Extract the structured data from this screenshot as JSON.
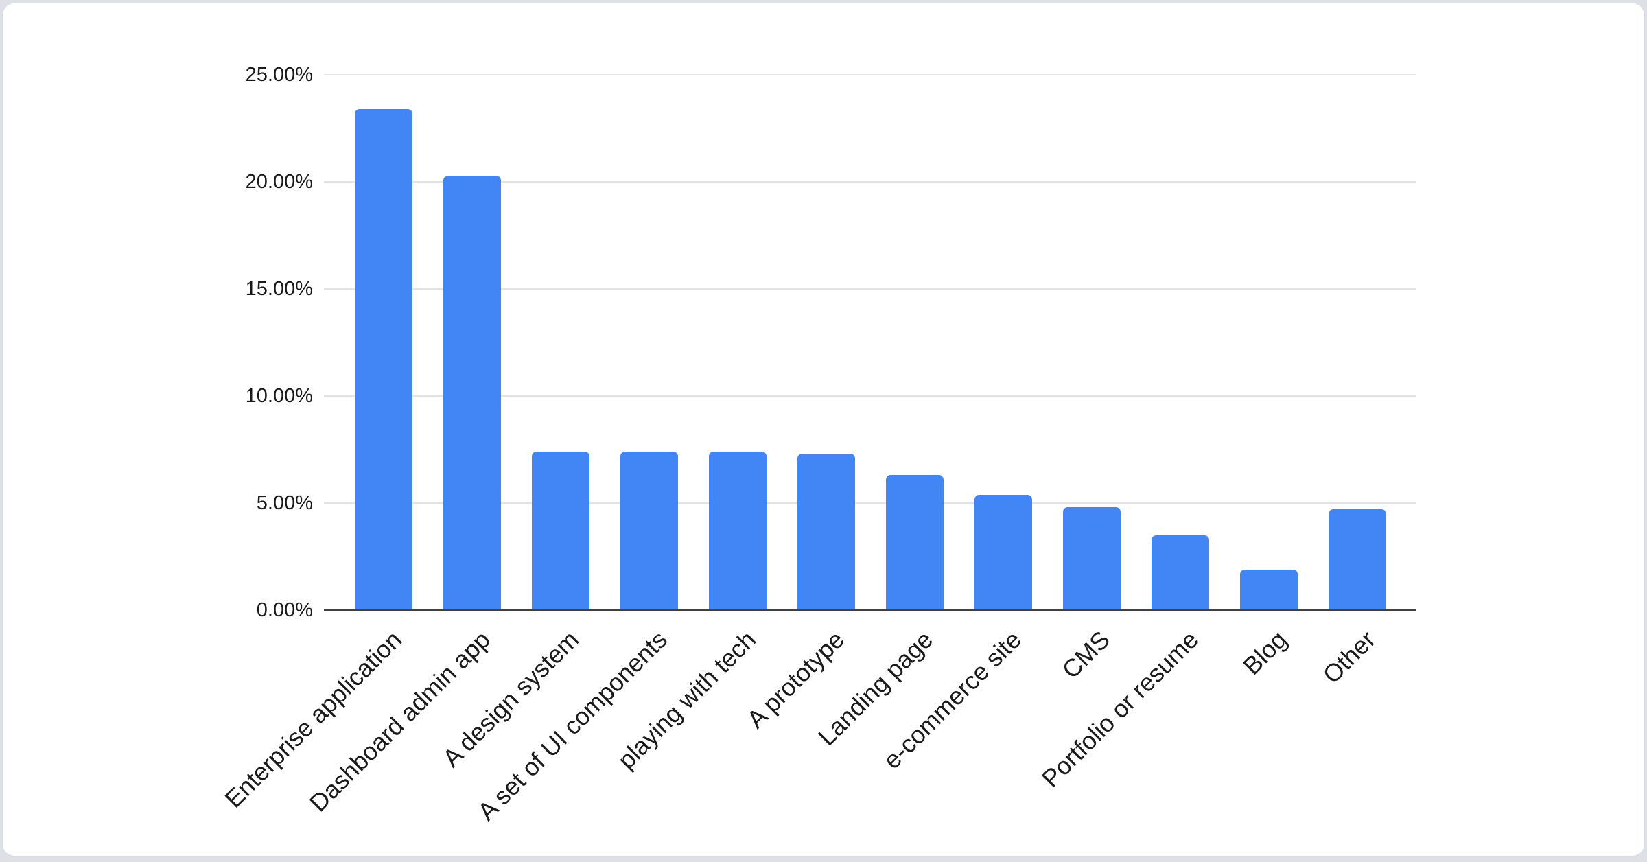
{
  "chart_data": {
    "type": "bar",
    "categories": [
      "Enterprise application",
      "Dashboard admin app",
      "A design system",
      "A set of UI components",
      "playing with tech",
      "A prototype",
      "Landing page",
      "e-commerce site",
      "CMS",
      "Portfolio or resume",
      "Blog",
      "Other"
    ],
    "values": [
      23.4,
      20.3,
      7.4,
      7.4,
      7.4,
      7.3,
      6.3,
      5.4,
      4.8,
      3.5,
      1.9,
      4.7
    ],
    "value_unit": "%",
    "xlabel": "",
    "ylabel": "",
    "y_axis": {
      "tick_labels": [
        "0.00%",
        "5.00%",
        "10.00%",
        "15.00%",
        "20.00%",
        "25.00%"
      ],
      "tick_values": [
        0,
        5,
        10,
        15,
        20,
        25
      ],
      "min": 0,
      "max": 25
    },
    "x_tick_angle_deg": -45,
    "grid": true,
    "legend": "none"
  },
  "colors": {
    "bar": "#4285f4",
    "gridline": "#e3e3e3",
    "baseline": "#424242",
    "text": "#1a1a1a",
    "card_bg": "#ffffff",
    "card_border": "#d8dbdf",
    "page_bg": "#dde1e6"
  }
}
